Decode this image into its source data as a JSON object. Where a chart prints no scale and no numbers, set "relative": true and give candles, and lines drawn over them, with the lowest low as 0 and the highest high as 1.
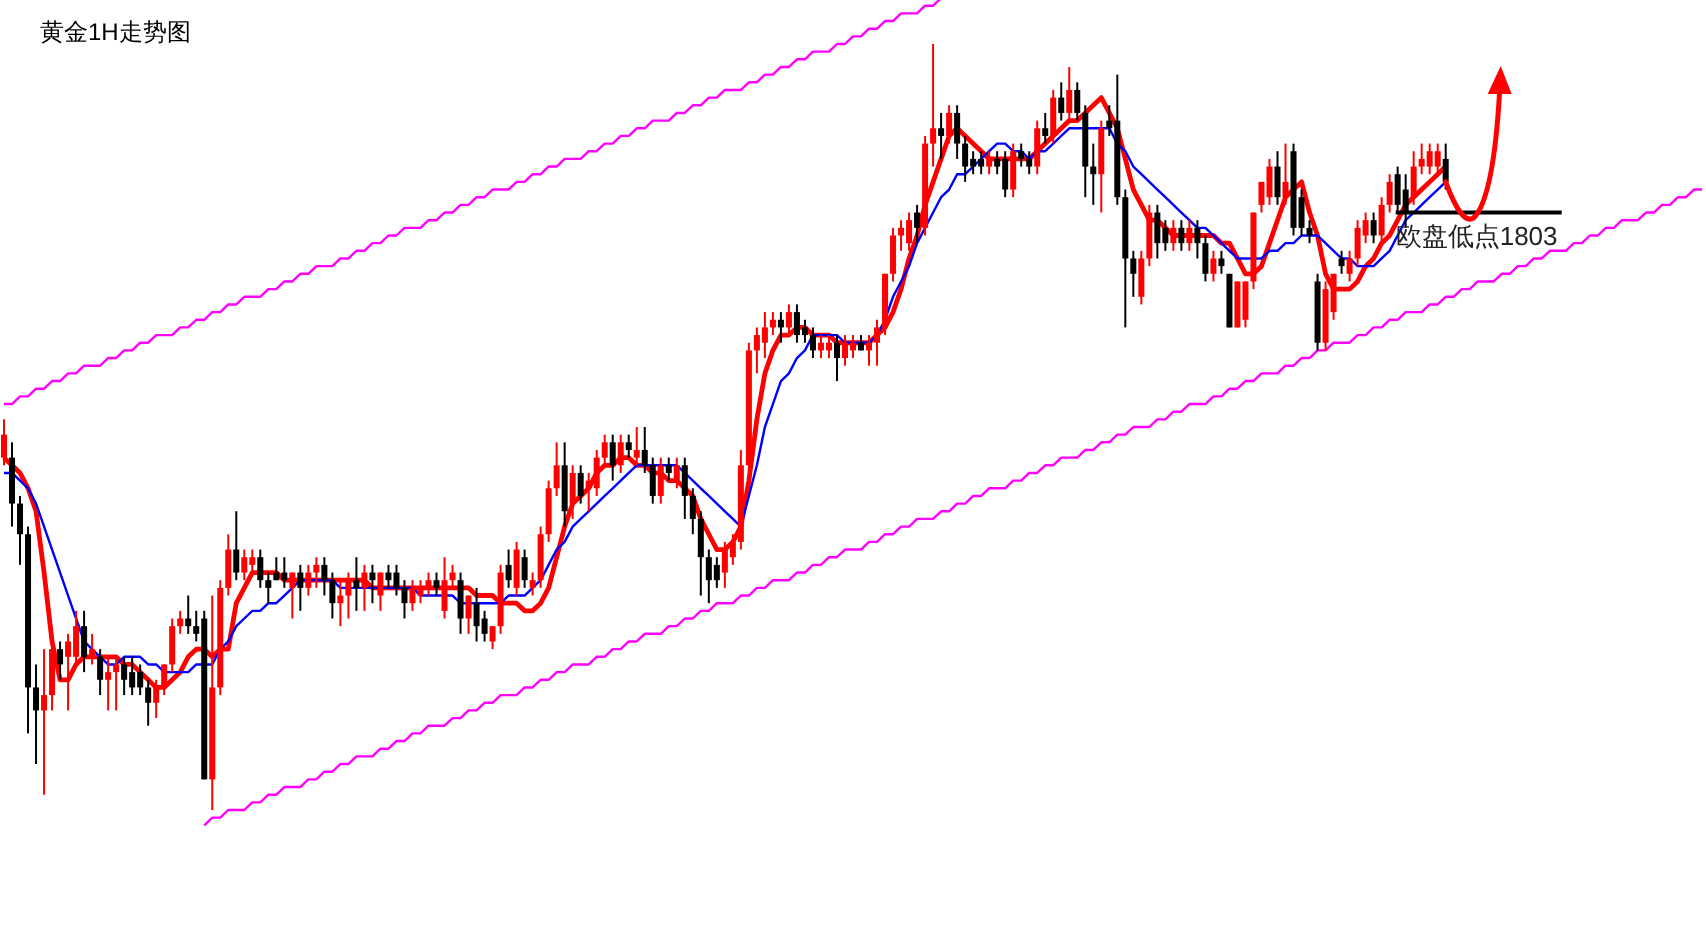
{
  "chart_data": {
    "type": "candlestick",
    "title": "黄金1H走势图",
    "relative": true,
    "categories": [
      null,
      null,
      null,
      null,
      null,
      null,
      null,
      null,
      null,
      null,
      null,
      null,
      null,
      null,
      null,
      null,
      null,
      null,
      null,
      null,
      null,
      null,
      null,
      null,
      null,
      null,
      null,
      null,
      null,
      null,
      null,
      null,
      null,
      null,
      null,
      null,
      null,
      null,
      null,
      null,
      null,
      null,
      null,
      null,
      null,
      null,
      null,
      null,
      null,
      null,
      null,
      null,
      null,
      null,
      null,
      null,
      null,
      null,
      null,
      null,
      null,
      null,
      null,
      null,
      null,
      null,
      null,
      null,
      null,
      null,
      null,
      null,
      null,
      null,
      null,
      null,
      null,
      null,
      null,
      null,
      null,
      null,
      null,
      null,
      null,
      null,
      null,
      null,
      null,
      null,
      null,
      null,
      null,
      null,
      null,
      null,
      null,
      null,
      null,
      null,
      null,
      null,
      null,
      null,
      null,
      null,
      null,
      null,
      null,
      null,
      null,
      null,
      null,
      null,
      null,
      null,
      null,
      null,
      null,
      null,
      null,
      null,
      null,
      null,
      null,
      null,
      null,
      null,
      null,
      null,
      null,
      null,
      null,
      null,
      null,
      null,
      null,
      null,
      null,
      null,
      null,
      null,
      null,
      null,
      null,
      null,
      null,
      null,
      null,
      null,
      null,
      null,
      null,
      null,
      null,
      null,
      null,
      null,
      null,
      null,
      null,
      null,
      null,
      null,
      null,
      null,
      null,
      null,
      null,
      null,
      null,
      null,
      null,
      null,
      null,
      null,
      null,
      null,
      null,
      null,
      null,
      null,
      null,
      null,
      null,
      null,
      null,
      null,
      null,
      null,
      null,
      null,
      null,
      null,
      null,
      null,
      null,
      null,
      null,
      null,
      null,
      null,
      null,
      null,
      null,
      null,
      null,
      null,
      null,
      null,
      null,
      null,
      null
    ],
    "ohlc": [
      [
        0.46,
        0.51,
        0.45,
        0.49
      ],
      [
        0.46,
        0.48,
        0.37,
        0.4
      ],
      [
        0.4,
        0.41,
        0.32,
        0.36
      ],
      [
        0.36,
        0.37,
        0.1,
        0.16
      ],
      [
        0.16,
        0.19,
        0.06,
        0.13
      ],
      [
        0.13,
        0.21,
        0.02,
        0.15
      ],
      [
        0.15,
        0.23,
        0.13,
        0.21
      ],
      [
        0.21,
        0.22,
        0.17,
        0.19
      ],
      [
        0.2,
        0.23,
        0.13,
        0.22
      ],
      [
        0.2,
        0.26,
        0.19,
        0.24
      ],
      [
        0.24,
        0.26,
        0.18,
        0.2
      ],
      [
        0.2,
        0.23,
        0.19,
        0.21
      ],
      [
        0.2,
        0.21,
        0.15,
        0.17
      ],
      [
        0.17,
        0.2,
        0.13,
        0.18
      ],
      [
        0.18,
        0.2,
        0.13,
        0.19
      ],
      [
        0.19,
        0.2,
        0.15,
        0.17
      ],
      [
        0.18,
        0.2,
        0.15,
        0.16
      ],
      [
        0.18,
        0.19,
        0.15,
        0.16
      ],
      [
        0.16,
        0.17,
        0.11,
        0.14
      ],
      [
        0.14,
        0.17,
        0.12,
        0.16
      ],
      [
        0.16,
        0.19,
        0.15,
        0.19
      ],
      [
        0.19,
        0.25,
        0.18,
        0.24
      ],
      [
        0.24,
        0.26,
        0.23,
        0.25
      ],
      [
        0.25,
        0.28,
        0.23,
        0.24
      ],
      [
        0.24,
        0.26,
        0.22,
        0.23
      ],
      [
        0.25,
        0.26,
        0.04,
        0.04
      ],
      [
        0.04,
        0.28,
        0.0,
        0.16
      ],
      [
        0.16,
        0.3,
        0.15,
        0.29
      ],
      [
        0.29,
        0.36,
        0.28,
        0.34
      ],
      [
        0.34,
        0.39,
        0.3,
        0.31
      ],
      [
        0.31,
        0.34,
        0.3,
        0.33
      ],
      [
        0.32,
        0.34,
        0.31,
        0.33
      ],
      [
        0.33,
        0.34,
        0.29,
        0.3
      ],
      [
        0.3,
        0.31,
        0.27,
        0.29
      ],
      [
        0.31,
        0.33,
        0.3,
        0.3
      ],
      [
        0.31,
        0.33,
        0.29,
        0.3
      ],
      [
        0.29,
        0.31,
        0.25,
        0.31
      ],
      [
        0.31,
        0.32,
        0.26,
        0.29
      ],
      [
        0.29,
        0.32,
        0.28,
        0.31
      ],
      [
        0.31,
        0.33,
        0.29,
        0.32
      ],
      [
        0.32,
        0.33,
        0.28,
        0.3
      ],
      [
        0.3,
        0.31,
        0.25,
        0.27
      ],
      [
        0.27,
        0.3,
        0.24,
        0.28
      ],
      [
        0.28,
        0.31,
        0.25,
        0.3
      ],
      [
        0.3,
        0.33,
        0.26,
        0.29
      ],
      [
        0.29,
        0.32,
        0.26,
        0.31
      ],
      [
        0.31,
        0.32,
        0.27,
        0.3
      ],
      [
        0.28,
        0.31,
        0.26,
        0.31
      ],
      [
        0.31,
        0.32,
        0.29,
        0.3
      ],
      [
        0.31,
        0.32,
        0.28,
        0.29
      ],
      [
        0.29,
        0.3,
        0.25,
        0.27
      ],
      [
        0.27,
        0.3,
        0.26,
        0.29
      ],
      [
        0.28,
        0.3,
        0.27,
        0.29
      ],
      [
        0.29,
        0.31,
        0.28,
        0.3
      ],
      [
        0.3,
        0.31,
        0.28,
        0.29
      ],
      [
        0.26,
        0.33,
        0.25,
        0.3
      ],
      [
        0.3,
        0.32,
        0.29,
        0.31
      ],
      [
        0.3,
        0.31,
        0.23,
        0.25
      ],
      [
        0.25,
        0.28,
        0.23,
        0.28
      ],
      [
        0.27,
        0.29,
        0.22,
        0.24
      ],
      [
        0.25,
        0.26,
        0.22,
        0.23
      ],
      [
        0.22,
        0.24,
        0.21,
        0.24
      ],
      [
        0.24,
        0.32,
        0.23,
        0.31
      ],
      [
        0.32,
        0.34,
        0.29,
        0.3
      ],
      [
        0.29,
        0.35,
        0.28,
        0.34
      ],
      [
        0.33,
        0.34,
        0.29,
        0.3
      ],
      [
        0.29,
        0.31,
        0.28,
        0.3
      ],
      [
        0.3,
        0.37,
        0.29,
        0.36
      ],
      [
        0.36,
        0.43,
        0.35,
        0.42
      ],
      [
        0.42,
        0.48,
        0.41,
        0.45
      ],
      [
        0.45,
        0.48,
        0.37,
        0.39
      ],
      [
        0.4,
        0.45,
        0.38,
        0.44
      ],
      [
        0.44,
        0.45,
        0.4,
        0.41
      ],
      [
        0.42,
        0.44,
        0.39,
        0.43
      ],
      [
        0.42,
        0.47,
        0.41,
        0.46
      ],
      [
        0.46,
        0.49,
        0.45,
        0.48
      ],
      [
        0.48,
        0.49,
        0.43,
        0.45
      ],
      [
        0.45,
        0.49,
        0.44,
        0.48
      ],
      [
        0.48,
        0.49,
        0.46,
        0.47
      ],
      [
        0.46,
        0.5,
        0.45,
        0.47
      ],
      [
        0.47,
        0.5,
        0.44,
        0.45
      ],
      [
        0.45,
        0.46,
        0.4,
        0.41
      ],
      [
        0.41,
        0.46,
        0.4,
        0.45
      ],
      [
        0.45,
        0.46,
        0.43,
        0.44
      ],
      [
        0.43,
        0.46,
        0.42,
        0.45
      ],
      [
        0.45,
        0.46,
        0.38,
        0.41
      ],
      [
        0.41,
        0.42,
        0.36,
        0.38
      ],
      [
        0.38,
        0.39,
        0.28,
        0.33
      ],
      [
        0.33,
        0.34,
        0.27,
        0.3
      ],
      [
        0.32,
        0.33,
        0.29,
        0.3
      ],
      [
        0.31,
        0.35,
        0.29,
        0.34
      ],
      [
        0.33,
        0.36,
        0.32,
        0.35
      ],
      [
        0.35,
        0.47,
        0.34,
        0.45
      ],
      [
        0.45,
        0.61,
        0.44,
        0.6
      ],
      [
        0.6,
        0.63,
        0.57,
        0.62
      ],
      [
        0.61,
        0.65,
        0.59,
        0.63
      ],
      [
        0.63,
        0.65,
        0.62,
        0.64
      ],
      [
        0.64,
        0.65,
        0.61,
        0.63
      ],
      [
        0.63,
        0.66,
        0.62,
        0.65
      ],
      [
        0.65,
        0.66,
        0.61,
        0.62
      ],
      [
        0.63,
        0.64,
        0.61,
        0.62
      ],
      [
        0.62,
        0.63,
        0.59,
        0.6
      ],
      [
        0.6,
        0.62,
        0.59,
        0.61
      ],
      [
        0.6,
        0.62,
        0.59,
        0.61
      ],
      [
        0.61,
        0.62,
        0.56,
        0.59
      ],
      [
        0.59,
        0.62,
        0.58,
        0.61
      ],
      [
        0.6,
        0.62,
        0.59,
        0.61
      ],
      [
        0.61,
        0.62,
        0.6,
        0.6
      ],
      [
        0.6,
        0.62,
        0.58,
        0.61
      ],
      [
        0.61,
        0.64,
        0.58,
        0.63
      ],
      [
        0.63,
        0.7,
        0.62,
        0.7
      ],
      [
        0.7,
        0.76,
        0.69,
        0.75
      ],
      [
        0.75,
        0.77,
        0.73,
        0.76
      ],
      [
        0.74,
        0.78,
        0.73,
        0.77
      ],
      [
        0.78,
        0.79,
        0.74,
        0.76
      ],
      [
        0.76,
        0.88,
        0.75,
        0.87
      ],
      [
        0.87,
        1.0,
        0.84,
        0.89
      ],
      [
        0.89,
        0.91,
        0.85,
        0.88
      ],
      [
        0.88,
        0.92,
        0.87,
        0.91
      ],
      [
        0.91,
        0.92,
        0.85,
        0.87
      ],
      [
        0.87,
        0.88,
        0.82,
        0.84
      ],
      [
        0.85,
        0.86,
        0.83,
        0.84
      ],
      [
        0.85,
        0.86,
        0.83,
        0.84
      ],
      [
        0.84,
        0.86,
        0.83,
        0.85
      ],
      [
        0.85,
        0.86,
        0.83,
        0.84
      ],
      [
        0.85,
        0.86,
        0.8,
        0.81
      ],
      [
        0.81,
        0.87,
        0.8,
        0.86
      ],
      [
        0.86,
        0.87,
        0.84,
        0.85
      ],
      [
        0.85,
        0.86,
        0.83,
        0.84
      ],
      [
        0.84,
        0.9,
        0.83,
        0.89
      ],
      [
        0.89,
        0.91,
        0.87,
        0.88
      ],
      [
        0.88,
        0.94,
        0.87,
        0.93
      ],
      [
        0.93,
        0.95,
        0.9,
        0.91
      ],
      [
        0.91,
        0.97,
        0.9,
        0.94
      ],
      [
        0.94,
        0.95,
        0.9,
        0.91
      ],
      [
        0.91,
        0.92,
        0.8,
        0.84
      ],
      [
        0.84,
        0.87,
        0.79,
        0.83
      ],
      [
        0.83,
        0.9,
        0.78,
        0.89
      ],
      [
        0.9,
        0.92,
        0.88,
        0.89
      ],
      [
        0.9,
        0.96,
        0.79,
        0.8
      ],
      [
        0.8,
        0.81,
        0.63,
        0.72
      ],
      [
        0.72,
        0.73,
        0.67,
        0.7
      ],
      [
        0.67,
        0.73,
        0.66,
        0.72
      ],
      [
        0.72,
        0.79,
        0.71,
        0.78
      ],
      [
        0.78,
        0.79,
        0.72,
        0.74
      ],
      [
        0.76,
        0.77,
        0.73,
        0.74
      ],
      [
        0.74,
        0.77,
        0.73,
        0.76
      ],
      [
        0.76,
        0.77,
        0.73,
        0.74
      ],
      [
        0.74,
        0.77,
        0.73,
        0.76
      ],
      [
        0.76,
        0.77,
        0.72,
        0.74
      ],
      [
        0.74,
        0.75,
        0.69,
        0.7
      ],
      [
        0.7,
        0.73,
        0.69,
        0.72
      ],
      [
        0.72,
        0.73,
        0.7,
        0.71
      ],
      [
        0.7,
        0.7,
        0.63,
        0.63
      ],
      [
        0.63,
        0.69,
        0.63,
        0.69
      ],
      [
        0.64,
        0.69,
        0.63,
        0.69
      ],
      [
        0.69,
        0.78,
        0.68,
        0.78
      ],
      [
        0.79,
        0.82,
        0.78,
        0.82
      ],
      [
        0.8,
        0.85,
        0.79,
        0.84
      ],
      [
        0.84,
        0.86,
        0.79,
        0.8
      ],
      [
        0.8,
        0.87,
        0.79,
        0.82
      ],
      [
        0.86,
        0.87,
        0.75,
        0.76
      ],
      [
        0.8,
        0.81,
        0.75,
        0.76
      ],
      [
        0.76,
        0.77,
        0.74,
        0.75
      ],
      [
        0.69,
        0.7,
        0.6,
        0.61
      ],
      [
        0.61,
        0.69,
        0.6,
        0.68
      ],
      [
        0.65,
        0.7,
        0.64,
        0.7
      ],
      [
        0.72,
        0.73,
        0.7,
        0.71
      ],
      [
        0.7,
        0.73,
        0.69,
        0.72
      ],
      [
        0.72,
        0.77,
        0.71,
        0.76
      ],
      [
        0.75,
        0.78,
        0.74,
        0.77
      ],
      [
        0.77,
        0.78,
        0.74,
        0.75
      ],
      [
        0.75,
        0.8,
        0.74,
        0.79
      ],
      [
        0.79,
        0.83,
        0.78,
        0.82
      ],
      [
        0.83,
        0.84,
        0.78,
        0.79
      ],
      [
        0.81,
        0.83,
        0.76,
        0.78
      ],
      [
        0.8,
        0.86,
        0.79,
        0.84
      ],
      [
        0.84,
        0.87,
        0.83,
        0.85
      ],
      [
        0.84,
        0.87,
        0.83,
        0.86
      ],
      [
        0.84,
        0.87,
        0.83,
        0.86
      ],
      [
        0.85,
        0.87,
        0.81,
        0.82
      ],
      null,
      null,
      null,
      null,
      null,
      null,
      null,
      null,
      null,
      null,
      null,
      null,
      null,
      null,
      null,
      null,
      null,
      null,
      null,
      null,
      null,
      null,
      null,
      null,
      null,
      null,
      null,
      null,
      null,
      null,
      null,
      null
    ],
    "series": [
      {
        "type": "line",
        "color": "#ff0000",
        "values": [
          0.46,
          0.45,
          0.44,
          0.42,
          0.39,
          0.31,
          0.22,
          0.17,
          0.17,
          0.19,
          0.2,
          0.2,
          0.2,
          0.2,
          0.2,
          0.19,
          0.19,
          0.18,
          0.17,
          0.16,
          0.16,
          0.17,
          0.18,
          0.2,
          0.21,
          0.21,
          0.2,
          0.21,
          0.21,
          0.27,
          0.29,
          0.31,
          0.31,
          0.31,
          0.31,
          0.3,
          0.3,
          0.3,
          0.3,
          0.3,
          0.3,
          0.3,
          0.3,
          0.3,
          0.3,
          0.3,
          0.29,
          0.29,
          0.29,
          0.29,
          0.29,
          0.29,
          0.29,
          0.29,
          0.29,
          0.29,
          0.29,
          0.29,
          0.29,
          0.28,
          0.28,
          0.28,
          0.27,
          0.27,
          0.27,
          0.26,
          0.26,
          0.27,
          0.29,
          0.33,
          0.37,
          0.4,
          0.41,
          0.42,
          0.44,
          0.45,
          0.45,
          0.46,
          0.46,
          0.45,
          0.45,
          0.44,
          0.44,
          0.43,
          0.43,
          0.42,
          0.41,
          0.38,
          0.36,
          0.34,
          0.34,
          0.35,
          0.37,
          0.43,
          0.51,
          0.57,
          0.6,
          0.62,
          0.62,
          0.63,
          0.63,
          0.62,
          0.62,
          0.62,
          0.61,
          0.61,
          0.61,
          0.61,
          0.61,
          0.62,
          0.63,
          0.65,
          0.68,
          0.72,
          0.75,
          0.79,
          0.82,
          0.85,
          0.88,
          0.89,
          0.88,
          0.87,
          0.86,
          0.85,
          0.85,
          0.85,
          0.85,
          0.85,
          0.85,
          0.86,
          0.87,
          0.88,
          0.89,
          0.9,
          0.9,
          0.91,
          0.92,
          0.93,
          0.91,
          0.89,
          0.85,
          0.81,
          0.79,
          0.77,
          0.77,
          0.76,
          0.75,
          0.75,
          0.75,
          0.75,
          0.75,
          0.75,
          0.74,
          0.74,
          0.72,
          0.7,
          0.7,
          0.71,
          0.74,
          0.77,
          0.8,
          0.81,
          0.82,
          0.78,
          0.75,
          0.7,
          0.68,
          0.68,
          0.68,
          0.69,
          0.71,
          0.72,
          0.74,
          0.75,
          0.77,
          0.79,
          0.8,
          0.81,
          0.82,
          0.83,
          0.84,
          null,
          null,
          null,
          null,
          null,
          null,
          null,
          null,
          null,
          null,
          null,
          null,
          null,
          null,
          null,
          null,
          null,
          null,
          null,
          null,
          null,
          null,
          null,
          null,
          null,
          null,
          null,
          null,
          null,
          null,
          null,
          null
        ]
      },
      {
        "type": "line",
        "color": "#0000ff",
        "values": [
          0.44,
          0.44,
          0.43,
          0.42,
          0.4,
          0.37,
          0.34,
          0.31,
          0.28,
          0.25,
          0.22,
          0.21,
          0.2,
          0.19,
          0.19,
          0.2,
          0.2,
          0.2,
          0.19,
          0.19,
          0.18,
          0.18,
          0.18,
          0.18,
          0.19,
          0.19,
          0.19,
          0.21,
          0.22,
          0.24,
          0.25,
          0.26,
          0.26,
          0.27,
          0.27,
          0.28,
          0.29,
          0.3,
          0.3,
          0.3,
          0.3,
          0.3,
          0.29,
          0.29,
          0.29,
          0.29,
          0.29,
          0.29,
          0.29,
          0.29,
          0.29,
          0.29,
          0.28,
          0.28,
          0.28,
          0.28,
          0.28,
          0.27,
          0.27,
          0.27,
          0.27,
          0.27,
          0.27,
          0.28,
          0.28,
          0.28,
          0.29,
          0.3,
          0.32,
          0.34,
          0.35,
          0.37,
          0.38,
          0.39,
          0.4,
          0.41,
          0.42,
          0.43,
          0.44,
          0.45,
          0.45,
          0.45,
          0.45,
          0.45,
          0.45,
          0.44,
          0.43,
          0.42,
          0.41,
          0.4,
          0.39,
          0.38,
          0.37,
          0.41,
          0.45,
          0.5,
          0.53,
          0.56,
          0.57,
          0.59,
          0.6,
          0.62,
          0.62,
          0.62,
          0.62,
          0.61,
          0.61,
          0.61,
          0.61,
          0.62,
          0.64,
          0.67,
          0.69,
          0.71,
          0.74,
          0.76,
          0.78,
          0.8,
          0.81,
          0.83,
          0.83,
          0.84,
          0.85,
          0.86,
          0.87,
          0.87,
          0.86,
          0.86,
          0.85,
          0.86,
          0.86,
          0.87,
          0.88,
          0.89,
          0.89,
          0.89,
          0.89,
          0.89,
          0.89,
          0.87,
          0.86,
          0.84,
          0.83,
          0.82,
          0.81,
          0.8,
          0.79,
          0.78,
          0.77,
          0.76,
          0.76,
          0.75,
          0.74,
          0.73,
          0.72,
          0.72,
          0.72,
          0.72,
          0.73,
          0.73,
          0.74,
          0.74,
          0.75,
          0.75,
          0.75,
          0.74,
          0.73,
          0.72,
          0.72,
          0.71,
          0.71,
          0.71,
          0.72,
          0.73,
          0.75,
          0.77,
          0.78,
          0.79,
          0.8,
          0.81,
          0.82,
          null,
          null,
          null,
          null,
          null,
          null,
          null,
          null,
          null,
          null,
          null,
          null,
          null,
          null,
          null,
          null,
          null,
          null,
          null,
          null,
          null,
          null,
          null,
          null,
          null,
          null,
          null,
          null,
          null,
          null,
          null,
          null
        ]
      },
      {
        "type": "line",
        "color": "#ff00ff",
        "values": [
          0.53,
          0.53,
          0.54,
          0.54,
          0.55,
          0.55,
          0.56,
          0.56,
          0.57,
          0.57,
          0.58,
          0.58,
          0.58,
          0.59,
          0.59,
          0.6,
          0.6,
          0.61,
          0.61,
          0.62,
          0.62,
          0.62,
          0.63,
          0.63,
          0.64,
          0.64,
          0.65,
          0.65,
          0.66,
          0.66,
          0.67,
          0.67,
          0.67,
          0.68,
          0.68,
          0.69,
          0.69,
          0.7,
          0.7,
          0.71,
          0.71,
          0.71,
          0.72,
          0.72,
          0.73,
          0.73,
          0.74,
          0.74,
          0.75,
          0.75,
          0.76,
          0.76,
          0.76,
          0.77,
          0.77,
          0.78,
          0.78,
          0.79,
          0.79,
          0.8,
          0.8,
          0.81,
          0.81,
          0.81,
          0.82,
          0.82,
          0.83,
          0.83,
          0.84,
          0.84,
          0.85,
          0.85,
          0.85,
          0.86,
          0.86,
          0.87,
          0.87,
          0.88,
          0.88,
          0.89,
          0.89,
          0.9,
          0.9,
          0.9,
          0.91,
          0.91,
          0.92,
          0.92,
          0.93,
          0.93,
          0.94,
          0.94,
          0.94,
          0.95,
          0.95,
          0.96,
          0.96,
          0.97,
          0.97,
          0.98,
          0.98,
          0.99,
          0.99,
          0.99,
          1.0,
          1.0,
          1.01,
          1.01,
          1.02,
          1.02,
          1.03,
          1.03,
          1.04,
          1.04,
          1.04,
          1.05,
          1.05,
          1.06,
          null,
          null,
          null,
          null,
          null,
          null,
          null,
          null,
          null,
          null,
          null,
          null,
          null,
          null,
          null,
          null,
          null,
          null,
          null,
          null,
          null,
          null,
          null,
          null,
          null,
          null,
          null,
          null,
          null,
          null,
          null,
          null,
          null,
          null,
          null,
          null,
          null,
          null,
          null,
          null,
          null,
          null,
          null,
          null,
          null,
          null,
          null,
          null,
          null,
          null,
          null,
          null,
          null,
          null,
          null,
          null,
          null,
          null,
          null,
          null,
          null,
          null,
          null,
          null,
          null,
          null,
          null,
          null,
          null,
          null,
          null,
          null,
          null,
          null,
          null,
          null,
          null,
          null,
          null,
          null,
          null,
          null,
          null,
          null,
          null,
          null,
          null,
          null,
          null,
          null,
          null,
          null,
          null,
          null,
          null
        ]
      },
      {
        "type": "line",
        "color": "#ff00ff",
        "values": [
          null,
          null,
          null,
          null,
          null,
          null,
          null,
          null,
          null,
          null,
          null,
          null,
          null,
          null,
          null,
          null,
          null,
          null,
          null,
          null,
          null,
          null,
          null,
          null,
          null,
          -0.02,
          -0.01,
          -0.01,
          0.0,
          0.0,
          0.0,
          0.01,
          0.01,
          0.02,
          0.02,
          0.03,
          0.03,
          0.03,
          0.04,
          0.04,
          0.05,
          0.05,
          0.06,
          0.06,
          0.07,
          0.07,
          0.07,
          0.08,
          0.08,
          0.09,
          0.09,
          0.1,
          0.1,
          0.11,
          0.11,
          0.11,
          0.12,
          0.12,
          0.13,
          0.13,
          0.14,
          0.14,
          0.15,
          0.15,
          0.15,
          0.16,
          0.16,
          0.17,
          0.17,
          0.18,
          0.18,
          0.19,
          0.19,
          0.19,
          0.2,
          0.2,
          0.21,
          0.21,
          0.22,
          0.22,
          0.23,
          0.23,
          0.23,
          0.24,
          0.24,
          0.25,
          0.25,
          0.26,
          0.26,
          0.27,
          0.27,
          0.27,
          0.28,
          0.28,
          0.29,
          0.29,
          0.3,
          0.3,
          0.3,
          0.31,
          0.31,
          0.32,
          0.32,
          0.33,
          0.33,
          0.34,
          0.34,
          0.34,
          0.35,
          0.35,
          0.36,
          0.36,
          0.37,
          0.37,
          0.38,
          0.38,
          0.38,
          0.39,
          0.39,
          0.4,
          0.4,
          0.41,
          0.41,
          0.42,
          0.42,
          0.42,
          0.43,
          0.43,
          0.44,
          0.44,
          0.45,
          0.45,
          0.46,
          0.46,
          0.46,
          0.47,
          0.47,
          0.48,
          0.48,
          0.49,
          0.49,
          0.5,
          0.5,
          0.5,
          0.51,
          0.51,
          0.52,
          0.52,
          0.53,
          0.53,
          0.53,
          0.54,
          0.54,
          0.55,
          0.55,
          0.56,
          0.56,
          0.57,
          0.57,
          0.57,
          0.58,
          0.58,
          0.59,
          0.59,
          0.6,
          0.6,
          0.61,
          0.61,
          0.61,
          0.62,
          0.62,
          0.63,
          0.63,
          0.64,
          0.64,
          0.65,
          0.65,
          0.65,
          0.66,
          0.66,
          0.67,
          0.67,
          0.68,
          0.68,
          0.69,
          0.69,
          0.69,
          0.7,
          0.7,
          0.71,
          0.71,
          0.72,
          0.72,
          0.73,
          0.73,
          0.73,
          0.74,
          0.74,
          0.75,
          0.75,
          0.76,
          0.76,
          0.77,
          0.77,
          0.77,
          0.78,
          0.78,
          0.79,
          0.79,
          0.8,
          0.8,
          0.81,
          0.81
        ]
      }
    ],
    "ref_lines": [
      {
        "axis": "y",
        "value": 0.78,
        "label": "欧盘低点1803",
        "color": "#000000"
      }
    ]
  }
}
